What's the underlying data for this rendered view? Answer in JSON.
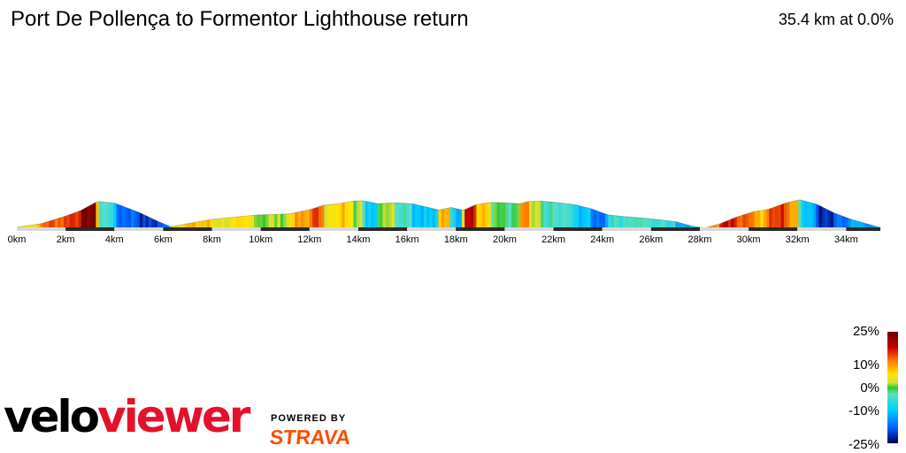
{
  "title": "Port De Pollença to Formentor Lighthouse return",
  "summary": "35.4 km at 0.0%",
  "branding": {
    "velo": "velo",
    "viewer": "viewer",
    "powered_by": "POWERED BY",
    "strava": "STRAVA",
    "viewer_color": "#e4112b",
    "strava_color": "#fc4c02"
  },
  "chart_data": {
    "type": "area",
    "title": "Port De Pollença to Formentor Lighthouse return",
    "xlabel": "",
    "ylabel": "",
    "xlim": [
      0,
      35.4
    ],
    "x_ticks": [
      "0km",
      "2km",
      "4km",
      "6km",
      "8km",
      "10km",
      "12km",
      "14km",
      "16km",
      "18km",
      "20km",
      "22km",
      "24km",
      "26km",
      "28km",
      "30km",
      "32km",
      "34km"
    ],
    "grid": false,
    "series": [
      {
        "x": [
          0,
          1.0,
          2.0,
          2.6,
          3.3,
          4.0,
          5.0,
          5.8,
          6.3,
          7.0,
          8.0,
          9.0,
          9.8,
          10.6,
          11.2,
          12.0,
          12.6,
          13.2,
          13.8,
          14.2,
          14.8,
          15.5,
          16.2,
          16.8,
          17.3,
          17.8,
          18.3,
          18.8,
          19.4,
          20.0,
          20.6,
          21.0,
          21.5,
          22.1,
          22.8,
          23.5,
          24.2,
          24.8,
          25.5,
          26.2,
          27.0,
          27.6,
          28.2,
          28.8,
          29.5,
          30.2,
          30.8,
          31.5,
          32.1,
          32.8,
          33.5,
          34.2,
          35.4
        ],
        "y": [
          3,
          14,
          37,
          53,
          81,
          76,
          48,
          20,
          5,
          14,
          27,
          34,
          40,
          42,
          44,
          56,
          70,
          74,
          82,
          83,
          74,
          77,
          74,
          64,
          55,
          63,
          54,
          71,
          78,
          77,
          74,
          81,
          82,
          78,
          72,
          60,
          41,
          36,
          32,
          27,
          20,
          8,
          1,
          13,
          34,
          50,
          57,
          76,
          86,
          72,
          46,
          27,
          2
        ]
      }
    ],
    "color_scale": {
      "label_values": [
        "25%",
        "10%",
        "0%",
        "-10%",
        "-25%"
      ],
      "stops": [
        {
          "grade": 25,
          "color": "#6e0000"
        },
        {
          "grade": 18,
          "color": "#c80000"
        },
        {
          "grade": 12,
          "color": "#ff7a00"
        },
        {
          "grade": 6,
          "color": "#ffe600"
        },
        {
          "grade": 2,
          "color": "#cfe03a"
        },
        {
          "grade": 0,
          "color": "#2ec82e"
        },
        {
          "grade": -3,
          "color": "#5de0c0"
        },
        {
          "grade": -10,
          "color": "#00d0ff"
        },
        {
          "grade": -18,
          "color": "#0060ff"
        },
        {
          "grade": -25,
          "color": "#00005a"
        }
      ]
    }
  }
}
